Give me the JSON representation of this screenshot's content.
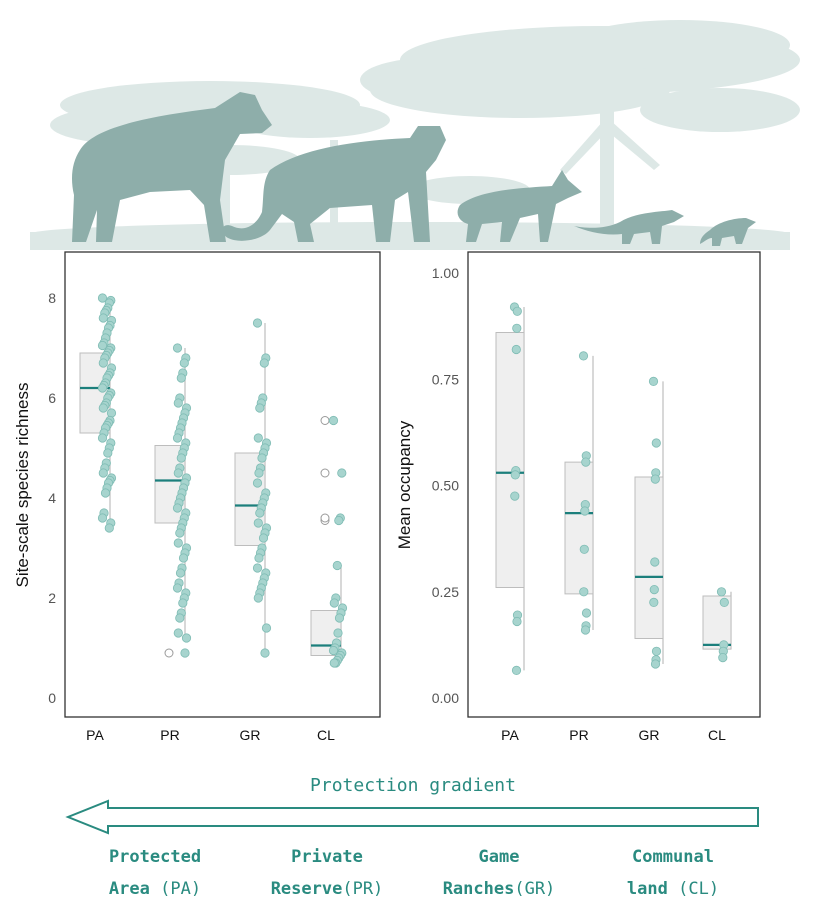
{
  "chart_data": [
    {
      "type": "box-strip",
      "ylabel": "Site-scale species richness",
      "categories": [
        "PA",
        "PR",
        "GR",
        "CL"
      ],
      "yticks": [
        0,
        2,
        4,
        6,
        8
      ],
      "ylim": [
        -0.3,
        8.9
      ],
      "boxes": [
        {
          "category": "PA",
          "whisker_low": 3.4,
          "q1": 5.3,
          "median": 6.2,
          "q3": 6.9,
          "whisker_high": 8.0,
          "outliers": []
        },
        {
          "category": "PR",
          "whisker_low": 1.2,
          "q1": 3.5,
          "median": 4.35,
          "q3": 5.05,
          "whisker_high": 7.0,
          "outliers": [
            0.9
          ]
        },
        {
          "category": "GR",
          "whisker_low": 0.9,
          "q1": 3.05,
          "median": 3.85,
          "q3": 4.9,
          "whisker_high": 7.5,
          "outliers": []
        },
        {
          "category": "CL",
          "whisker_low": 0.85,
          "q1": 0.85,
          "median": 1.05,
          "q3": 1.75,
          "whisker_high": 2.65,
          "outliers": [
            3.55,
            3.6,
            4.5,
            5.55
          ]
        }
      ],
      "points": {
        "PA": [
          8.0,
          7.95,
          7.9,
          7.8,
          7.75,
          7.7,
          7.6,
          7.55,
          7.45,
          7.4,
          7.3,
          7.2,
          7.1,
          7.05,
          7.0,
          6.95,
          6.9,
          6.85,
          6.8,
          6.7,
          6.6,
          6.5,
          6.45,
          6.4,
          6.3,
          6.25,
          6.2,
          6.1,
          6.05,
          6.0,
          5.9,
          5.85,
          5.8,
          5.7,
          5.55,
          5.5,
          5.45,
          5.4,
          5.3,
          5.2,
          5.1,
          5.0,
          4.9,
          4.7,
          4.6,
          4.5,
          4.4,
          4.35,
          4.3,
          4.2,
          4.1,
          3.7,
          3.6,
          3.5,
          3.4
        ],
        "PR": [
          7.0,
          6.8,
          6.7,
          6.5,
          6.4,
          6.0,
          5.9,
          5.8,
          5.7,
          5.6,
          5.5,
          5.4,
          5.3,
          5.2,
          5.1,
          5.0,
          4.9,
          4.8,
          4.6,
          4.5,
          4.4,
          4.3,
          4.2,
          4.1,
          4.0,
          3.9,
          3.8,
          3.7,
          3.6,
          3.5,
          3.4,
          3.3,
          3.1,
          3.0,
          2.9,
          2.8,
          2.6,
          2.5,
          2.3,
          2.2,
          2.1,
          2.0,
          1.9,
          1.7,
          1.6,
          1.3,
          1.2,
          0.9
        ],
        "GR": [
          7.5,
          6.8,
          6.7,
          6.0,
          5.9,
          5.8,
          5.2,
          5.1,
          5.0,
          4.9,
          4.8,
          4.6,
          4.5,
          4.3,
          4.1,
          4.0,
          3.9,
          3.8,
          3.7,
          3.5,
          3.4,
          3.3,
          3.2,
          3.0,
          2.9,
          2.8,
          2.6,
          2.5,
          2.4,
          2.3,
          2.2,
          2.1,
          2.0,
          1.4,
          0.9
        ],
        "CL": [
          5.55,
          4.5,
          3.6,
          3.55,
          2.65,
          2.0,
          1.9,
          1.8,
          1.7,
          1.6,
          1.3,
          1.1,
          1.0,
          0.95,
          0.9,
          0.85,
          0.8,
          0.75,
          0.7,
          0.7
        ]
      }
    },
    {
      "type": "box-strip",
      "ylabel": "Mean occupancy",
      "categories": [
        "PA",
        "PR",
        "GR",
        "CL"
      ],
      "yticks": [
        "0.00",
        "0.25",
        "0.50",
        "0.75",
        "1.00"
      ],
      "ylim": [
        -0.05,
        1.05
      ],
      "boxes": [
        {
          "category": "PA",
          "whisker_low": 0.065,
          "q1": 0.26,
          "median": 0.53,
          "q3": 0.86,
          "whisker_high": 0.92,
          "outliers": []
        },
        {
          "category": "PR",
          "whisker_low": 0.16,
          "q1": 0.245,
          "median": 0.435,
          "q3": 0.555,
          "whisker_high": 0.805,
          "outliers": []
        },
        {
          "category": "GR",
          "whisker_low": 0.08,
          "q1": 0.14,
          "median": 0.285,
          "q3": 0.52,
          "whisker_high": 0.745,
          "outliers": []
        },
        {
          "category": "CL",
          "whisker_low": 0.115,
          "q1": 0.115,
          "median": 0.125,
          "q3": 0.24,
          "whisker_high": 0.25,
          "outliers": []
        }
      ],
      "points": {
        "PA": [
          0.92,
          0.91,
          0.87,
          0.82,
          0.535,
          0.525,
          0.475,
          0.195,
          0.18,
          0.065
        ],
        "PR": [
          0.805,
          0.57,
          0.555,
          0.455,
          0.44,
          0.35,
          0.25,
          0.2,
          0.17,
          0.16
        ],
        "GR": [
          0.745,
          0.6,
          0.53,
          0.515,
          0.32,
          0.255,
          0.225,
          0.11,
          0.09,
          0.08
        ],
        "CL": [
          0.25,
          0.225,
          0.125,
          0.11,
          0.095
        ]
      }
    }
  ],
  "gradient": {
    "label": "Protection gradient",
    "zones": [
      {
        "bold": "Protected",
        "bold2": "Area",
        "abbr": "(PA)"
      },
      {
        "bold": "Private",
        "bold2": "Reserve",
        "abbr": "(PR)"
      },
      {
        "bold": "Game",
        "bold2": "Ranches",
        "abbr": "(GR)"
      },
      {
        "bold": "Communal",
        "bold2": "land",
        "abbr": "(CL)"
      }
    ]
  },
  "colors": {
    "point_fill": "#a7d4ce",
    "point_stroke": "#7fbcb4",
    "median": "#1c7f7c",
    "box_fill": "#efefef",
    "box_stroke": "#bdbdbd",
    "arrow": "#2a8b80",
    "gradient_text": "#2a8b80",
    "silhouette": "#8eaeaa",
    "trees": "#dde8e6"
  },
  "icons": [
    "acacia-trees-silhouette",
    "hyena-silhouette",
    "leopard-silhouette",
    "jackal-silhouette",
    "mongoose-silhouette",
    "meerkat-silhouette"
  ]
}
